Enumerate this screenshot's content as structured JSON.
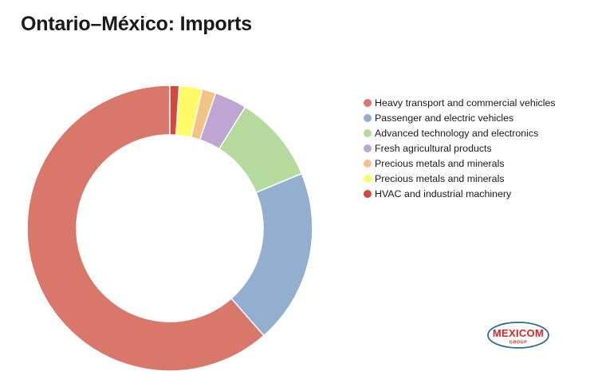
{
  "header": {
    "title": "Ontario–México: Imports"
  },
  "chart_data": {
    "type": "pie",
    "donut": true,
    "title": "Ontario–México: Imports",
    "legend_position": "right",
    "categories": [
      "Heavy transport and commercial vehicles",
      "Passenger and electric vehicles",
      "Advanced technology and electronics",
      "Fresh agricultural products",
      "Precious metals and minerals",
      "Precious metals and minerals",
      "HVAC and industrial machinery"
    ],
    "values": [
      59,
      19,
      9.5,
      3.5,
      1.5,
      2.5,
      1
    ],
    "colors": [
      "#D9776B",
      "#93AFD0",
      "#B4DB9B",
      "#BEA5D2",
      "#F2C385",
      "#FFFA66",
      "#D14A3F"
    ]
  },
  "legend": {
    "items": [
      {
        "label": "Heavy transport and commercial vehicles",
        "color": "#D9776B"
      },
      {
        "label": "Passenger and electric vehicles",
        "color": "#93AFD0"
      },
      {
        "label": "Advanced technology and electronics",
        "color": "#B4DB9B"
      },
      {
        "label": "Fresh agricultural products",
        "color": "#BEA5D2"
      },
      {
        "label": "Precious metals and minerals",
        "color": "#F2C385"
      },
      {
        "label": "Precious metals and minerals",
        "color": "#FFFA66"
      },
      {
        "label": "HVAC and industrial machinery",
        "color": "#D14A3F"
      }
    ]
  },
  "logo": {
    "name": "MEXICOM",
    "tagline": "GROUP",
    "text_color": "#D62828",
    "outline_color": "#2B6E8F"
  }
}
